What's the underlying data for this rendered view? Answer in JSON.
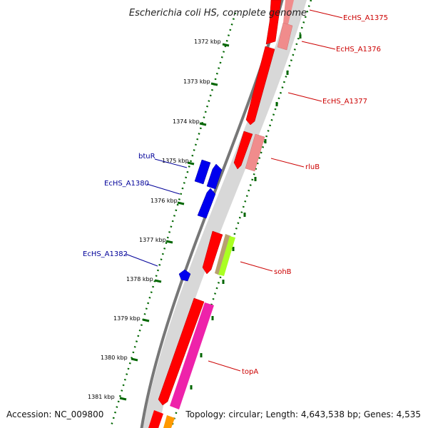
{
  "title": "Escherichia coli HS, complete genome",
  "footer": {
    "accession": "Accession: NC_009800",
    "summary": "Topology: circular; Length: 4,643,538 bp; Genes: 4,535"
  },
  "ticks": [
    "1372 kbp",
    "1373 kbp",
    "1374 kbp",
    "1375 kbp",
    "1376 kbp",
    "1377 kbp",
    "1378 kbp",
    "1379 kbp",
    "1380 kbp",
    "1381 kbp"
  ],
  "genes": [
    {
      "label": "EcHS_A1375",
      "strand": "forward",
      "color": "#cc0000"
    },
    {
      "label": "EcHS_A1376",
      "strand": "forward",
      "color": "#cc0000"
    },
    {
      "label": "EcHS_A1377",
      "strand": "forward",
      "color": "#cc0000"
    },
    {
      "label": "rluB",
      "strand": "forward",
      "color": "#cc0000"
    },
    {
      "label": "btuR",
      "strand": "reverse",
      "color": "#000099"
    },
    {
      "label": "EcHS_A1380",
      "strand": "reverse",
      "color": "#000099"
    },
    {
      "label": "EcHS_A1382",
      "strand": "reverse",
      "color": "#000099"
    },
    {
      "label": "sohB",
      "strand": "forward",
      "color": "#cc0000"
    },
    {
      "label": "topA",
      "strand": "forward",
      "color": "#cc0000"
    }
  ],
  "colors": {
    "cds": "#ff0000",
    "cds_light": "#f08c8c",
    "reverse_cds": "#0000ee",
    "khaki": "#b8a070",
    "lime": "#aaff22",
    "magenta": "#ee22aa",
    "orange": "#ff9900",
    "backbone": "#777777",
    "gc_skew": "#006600"
  }
}
